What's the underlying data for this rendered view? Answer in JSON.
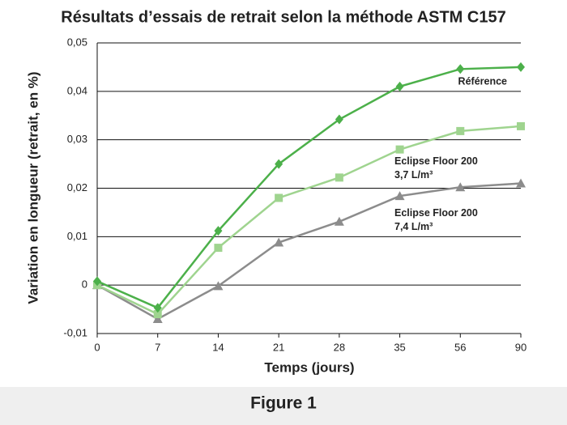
{
  "chart_data": {
    "type": "line",
    "title": "Résultats d’essais de retrait selon la méthode ASTM C157",
    "x_label": "Temps (jours)",
    "y_label": "Variation en longueur (retrait, en %)",
    "caption": "Figure 1",
    "categories": [
      "0",
      "7",
      "14",
      "21",
      "28",
      "35",
      "56",
      "90"
    ],
    "ylim": [
      -0.01,
      0.05
    ],
    "yticks": [
      {
        "value": -0.01,
        "label": "-0,01"
      },
      0,
      {
        "value": 0.01,
        "label": "0,01"
      },
      {
        "value": 0.02,
        "label": "0,02"
      },
      {
        "value": 0.03,
        "label": "0,03"
      },
      {
        "value": 0.04,
        "label": "0,04"
      },
      {
        "value": 0.05,
        "label": "0,05"
      }
    ],
    "grid": true,
    "series": [
      {
        "name": "Référence",
        "color": "#4cb04a",
        "marker": "diamond",
        "values": [
          0.0008,
          -0.0047,
          0.0112,
          0.025,
          0.0342,
          0.041,
          0.0446,
          0.045
        ]
      },
      {
        "name": "Eclipse Floor 200\n3,7 L/m³",
        "color": "#9fd48f",
        "marker": "square",
        "values": [
          0,
          -0.006,
          0.0077,
          0.018,
          0.0222,
          0.028,
          0.0318,
          0.0328
        ]
      },
      {
        "name": "Eclipse Floor 200\n7,4 L/m³",
        "color": "#8c8c8c",
        "marker": "triangle",
        "values": [
          0,
          -0.007,
          -0.0002,
          0.0088,
          0.0131,
          0.0184,
          0.0202,
          0.021
        ]
      }
    ]
  }
}
